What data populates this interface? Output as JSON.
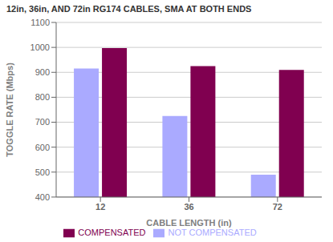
{
  "chart_data": {
    "type": "bar",
    "title": "12in, 36in, AND 72in RG174 CABLES, SMA AT BOTH ENDS",
    "xlabel": "CABLE LENGTH (in)",
    "ylabel": "TOGGLE RATE (Mbps)",
    "categories": [
      "12",
      "36",
      "72"
    ],
    "series": [
      {
        "name": "NOT COMPENSATED",
        "color": "#aaaaff",
        "values": [
          915,
          725,
          490
        ]
      },
      {
        "name": "COMPENSATED",
        "color": "#800050",
        "values": [
          997,
          925,
          910
        ]
      }
    ],
    "ylim": [
      400,
      1100
    ],
    "yticks": [
      400,
      500,
      600,
      700,
      800,
      900,
      1000,
      1100
    ],
    "grid": true,
    "legend": "bottom"
  }
}
